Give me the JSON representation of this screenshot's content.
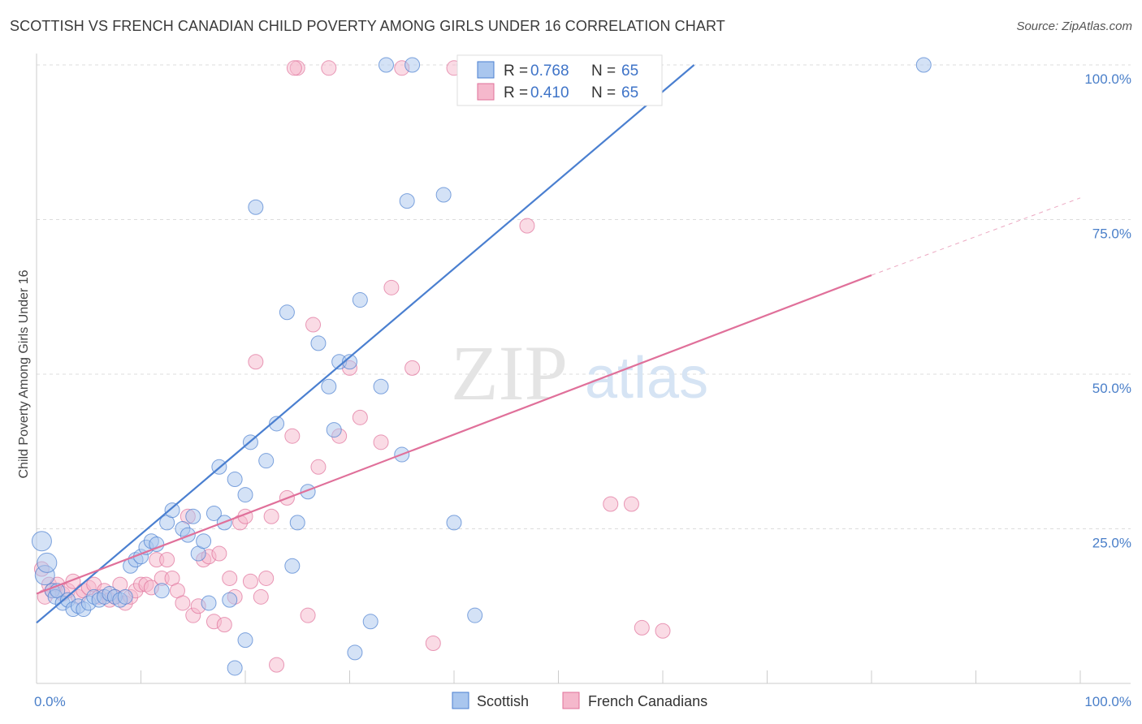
{
  "title": "SCOTTISH VS FRENCH CANADIAN CHILD POVERTY AMONG GIRLS UNDER 16 CORRELATION CHART",
  "source": "Source: ZipAtlas.com",
  "watermark": {
    "zip": "ZIP",
    "atlas": "atlas"
  },
  "colors": {
    "blue": "#4a7fd0",
    "blue_fill": "#a9c6ee",
    "pink": "#e0709a",
    "pink_fill": "#f5b8cc",
    "tick_text": "#4a7fc9"
  },
  "chart_data": {
    "type": "scatter",
    "ylabel": "Child Poverty Among Girls Under 16",
    "xlabel": "",
    "xlim": [
      0,
      100
    ],
    "ylim": [
      0,
      100
    ],
    "x_tick_labels": [
      {
        "value": 0,
        "label": "0.0%"
      },
      {
        "value": 100,
        "label": "100.0%"
      }
    ],
    "y_tick_labels": [
      {
        "value": 25,
        "label": "25.0%"
      },
      {
        "value": 50,
        "label": "50.0%"
      },
      {
        "value": 75,
        "label": "75.0%"
      },
      {
        "value": 100,
        "label": "100.0%"
      }
    ],
    "grid": true,
    "legend_position": "top-center",
    "series": [
      {
        "name": "Scottish",
        "color": "#4a7fd0",
        "R": "0.768",
        "N": "65",
        "trend": {
          "x0": 0,
          "y0": 9.8,
          "x1": 63,
          "y1": 100
        },
        "points": [
          [
            0.5,
            23
          ],
          [
            0.8,
            17.5
          ],
          [
            1,
            19.5
          ],
          [
            1.5,
            15
          ],
          [
            1.8,
            14
          ],
          [
            2,
            15
          ],
          [
            2.5,
            13
          ],
          [
            3,
            13.5
          ],
          [
            3.5,
            12
          ],
          [
            4,
            12.5
          ],
          [
            4.5,
            12
          ],
          [
            5,
            13
          ],
          [
            5.5,
            14
          ],
          [
            6,
            13.5
          ],
          [
            6.5,
            14
          ],
          [
            7,
            14.5
          ],
          [
            7.5,
            14
          ],
          [
            8,
            13.5
          ],
          [
            8.5,
            14
          ],
          [
            9,
            19
          ],
          [
            9.5,
            20
          ],
          [
            10,
            20.5
          ],
          [
            10.5,
            22
          ],
          [
            11,
            23
          ],
          [
            12,
            15
          ],
          [
            11.5,
            22.5
          ],
          [
            12.5,
            26
          ],
          [
            13,
            28
          ],
          [
            14,
            25
          ],
          [
            14.5,
            24
          ],
          [
            15,
            27
          ],
          [
            15.5,
            21
          ],
          [
            16,
            23
          ],
          [
            16.5,
            13
          ],
          [
            17.5,
            35
          ],
          [
            17,
            27.5
          ],
          [
            18,
            26
          ],
          [
            19,
            33
          ],
          [
            20,
            30.5
          ],
          [
            20.5,
            39
          ],
          [
            18.5,
            13.5
          ],
          [
            21,
            77
          ],
          [
            22,
            36
          ],
          [
            23,
            42
          ],
          [
            24,
            60
          ],
          [
            24.5,
            19
          ],
          [
            25,
            26
          ],
          [
            26,
            31
          ],
          [
            27,
            55
          ],
          [
            28,
            48
          ],
          [
            28.5,
            41
          ],
          [
            29,
            52
          ],
          [
            30,
            52
          ],
          [
            30.5,
            5
          ],
          [
            31,
            62
          ],
          [
            32,
            10
          ],
          [
            33,
            48
          ],
          [
            33.5,
            100
          ],
          [
            35,
            37
          ],
          [
            35.5,
            78
          ],
          [
            36,
            100
          ],
          [
            39,
            79
          ],
          [
            40,
            26
          ],
          [
            41,
            100
          ],
          [
            42,
            11
          ],
          [
            47,
            100
          ],
          [
            54,
            100
          ],
          [
            85,
            100
          ],
          [
            19,
            2.5
          ],
          [
            20,
            7
          ]
        ]
      },
      {
        "name": "French Canadians",
        "color": "#e0709a",
        "R": "0.410",
        "N": "65",
        "trend": {
          "x0": 0,
          "y0": 14.5,
          "x1": 80,
          "y1": 66,
          "dashed_to_x": 100,
          "dashed_to_y": 78.5
        },
        "points": [
          [
            0.5,
            18.5
          ],
          [
            0.8,
            14
          ],
          [
            1.2,
            16
          ],
          [
            1.5,
            15
          ],
          [
            2,
            16
          ],
          [
            2.5,
            14.5
          ],
          [
            3,
            15
          ],
          [
            3.5,
            16.5
          ],
          [
            4,
            14
          ],
          [
            4.5,
            15
          ],
          [
            5,
            15.5
          ],
          [
            5.5,
            16
          ],
          [
            6,
            14
          ],
          [
            6.5,
            15
          ],
          [
            7,
            13.5
          ],
          [
            7.5,
            14
          ],
          [
            8,
            16
          ],
          [
            8.5,
            13
          ],
          [
            9,
            14
          ],
          [
            9.5,
            15
          ],
          [
            10,
            16
          ],
          [
            10.5,
            16
          ],
          [
            11,
            15.5
          ],
          [
            11.5,
            20
          ],
          [
            12,
            17
          ],
          [
            12.5,
            20
          ],
          [
            13,
            17
          ],
          [
            13.5,
            15
          ],
          [
            14,
            13
          ],
          [
            14.5,
            27
          ],
          [
            15,
            11
          ],
          [
            15.5,
            12.5
          ],
          [
            16,
            20
          ],
          [
            16.5,
            20.5
          ],
          [
            17,
            10
          ],
          [
            17.5,
            21
          ],
          [
            18,
            9.5
          ],
          [
            18.5,
            17
          ],
          [
            19,
            14
          ],
          [
            19.5,
            26
          ],
          [
            20,
            27
          ],
          [
            20.5,
            16.5
          ],
          [
            21,
            52
          ],
          [
            21.5,
            14
          ],
          [
            22,
            17
          ],
          [
            22.5,
            27
          ],
          [
            23,
            3
          ],
          [
            24,
            30
          ],
          [
            24.5,
            40
          ],
          [
            25,
            99.5
          ],
          [
            26,
            11
          ],
          [
            26.5,
            58
          ],
          [
            27,
            35
          ],
          [
            28,
            99.5
          ],
          [
            29,
            40
          ],
          [
            30,
            51
          ],
          [
            31,
            43
          ],
          [
            33,
            39
          ],
          [
            34,
            64
          ],
          [
            35,
            99.5
          ],
          [
            36,
            51
          ],
          [
            38,
            6.5
          ],
          [
            40,
            99.5
          ],
          [
            47,
            74
          ],
          [
            55,
            29
          ],
          [
            57,
            29
          ],
          [
            58,
            9
          ],
          [
            60,
            8.5
          ],
          [
            24.7,
            99.5
          ]
        ]
      }
    ]
  },
  "legend": {
    "rows": [
      {
        "r_label": "R = ",
        "r_value": "0.768",
        "n_label": "N = ",
        "n_value": "65"
      },
      {
        "r_label": "R = ",
        "r_value": "0.410",
        "n_label": "N = ",
        "n_value": "65"
      }
    ]
  },
  "bottom_legend": [
    {
      "label": "Scottish"
    },
    {
      "label": "French Canadians"
    }
  ]
}
